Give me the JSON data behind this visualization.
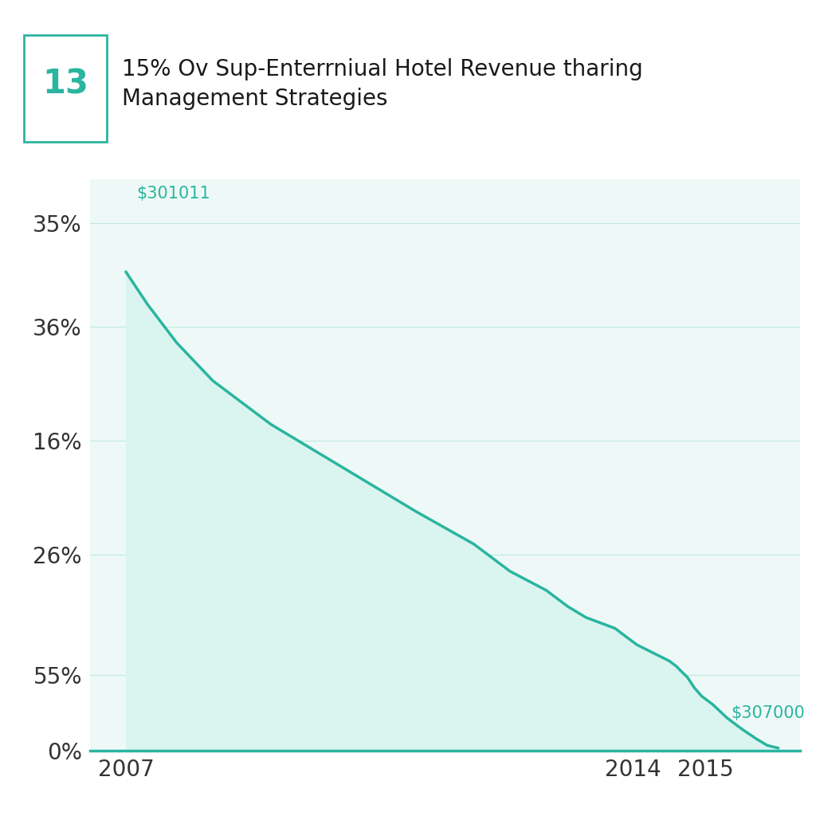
{
  "title_number": "13",
  "title_text": "15% Ov Sup-Enterrniual Hotel Revenue tharing\nManagement Strategies",
  "line_color": "#2ab5a0",
  "fill_color": "#daf5f0",
  "background_color": "#ffffff",
  "chart_bg_color": "#eef9f7",
  "grid_color": "#c0e8e0",
  "annotation_start": "$301011",
  "annotation_end": "$307000",
  "x_ticks": [
    2007,
    2014,
    2015
  ],
  "y_tick_labels": [
    "35%",
    "36%",
    "16%",
    "26%",
    "55%",
    "0%"
  ],
  "y_positions": [
    0.97,
    0.78,
    0.57,
    0.36,
    0.14,
    0.0
  ],
  "x_data": [
    2007.0,
    2007.3,
    2007.7,
    2008.2,
    2009.0,
    2010.0,
    2011.0,
    2011.8,
    2012.3,
    2012.8,
    2013.1,
    2013.35,
    2013.55,
    2013.75,
    2013.85,
    2013.95,
    2014.05,
    2014.2,
    2014.35,
    2014.5,
    2014.6,
    2014.65,
    2014.75,
    2014.85,
    2014.95,
    2015.1,
    2015.3,
    2015.5,
    2015.7,
    2015.85,
    2016.0
  ],
  "y_data": [
    0.88,
    0.82,
    0.75,
    0.68,
    0.6,
    0.52,
    0.44,
    0.38,
    0.33,
    0.295,
    0.265,
    0.245,
    0.235,
    0.225,
    0.215,
    0.205,
    0.195,
    0.185,
    0.175,
    0.165,
    0.155,
    0.148,
    0.135,
    0.115,
    0.1,
    0.085,
    0.06,
    0.04,
    0.022,
    0.01,
    0.005
  ],
  "xlim": [
    2006.5,
    2016.3
  ],
  "ylim": [
    0,
    1.05
  ],
  "badge_color": "#2ab5a0",
  "annotation_color": "#2ab5a0"
}
